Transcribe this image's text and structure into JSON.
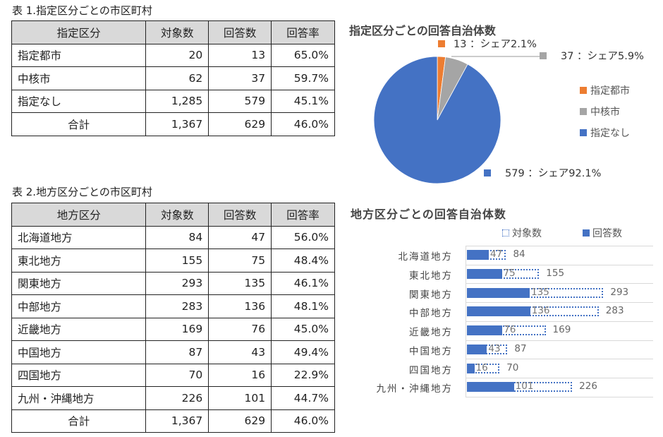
{
  "table1": {
    "caption": "表 1.指定区分ごとの市区町村",
    "headers": [
      "指定区分",
      "対象数",
      "回答数",
      "回答率"
    ],
    "rows": [
      {
        "label": "指定都市",
        "target": "20",
        "responses": "13",
        "rate": "65.0%"
      },
      {
        "label": "中核市",
        "target": "62",
        "responses": "37",
        "rate": "59.7%"
      },
      {
        "label": "指定なし",
        "target": "1,285",
        "responses": "579",
        "rate": "45.1%"
      }
    ],
    "total": {
      "label": "合計",
      "target": "1,367",
      "responses": "629",
      "rate": "46.0%"
    }
  },
  "table2": {
    "caption": "表 2.地方区分ごとの市区町村",
    "headers": [
      "地方区分",
      "対象数",
      "回答数",
      "回答率"
    ],
    "rows": [
      {
        "label": "北海道地方",
        "target": "84",
        "responses": "47",
        "rate": "56.0%"
      },
      {
        "label": "東北地方",
        "target": "155",
        "responses": "75",
        "rate": "48.4%"
      },
      {
        "label": "関東地方",
        "target": "293",
        "responses": "135",
        "rate": "46.1%"
      },
      {
        "label": "中部地方",
        "target": "283",
        "responses": "136",
        "rate": "48.1%"
      },
      {
        "label": "近畿地方",
        "target": "169",
        "responses": "76",
        "rate": "45.0%"
      },
      {
        "label": "中国地方",
        "target": "87",
        "responses": "43",
        "rate": "49.4%"
      },
      {
        "label": "四国地方",
        "target": "70",
        "responses": "16",
        "rate": "22.9%"
      },
      {
        "label": "九州・沖縄地方",
        "target": "226",
        "responses": "101",
        "rate": "44.7%"
      }
    ],
    "total": {
      "label": "合計",
      "target": "1,367",
      "responses": "629",
      "rate": "46.0%"
    }
  },
  "colors": {
    "orange": "#ed7d31",
    "gray": "#a5a5a5",
    "blue": "#4472c4",
    "header_bg": "#d9d9d9"
  },
  "chart_data": [
    {
      "type": "pie",
      "title": "指定区分ごとの回答自治体数",
      "categories": [
        "指定都市",
        "中核市",
        "指定なし"
      ],
      "values": [
        13,
        37,
        579
      ],
      "shares": [
        "2.1%",
        "5.9%",
        "92.1%"
      ],
      "data_labels": [
        "13 ：シェア2.1%",
        "37 ：シェア5.9%",
        "579 ：シェア92.1%"
      ],
      "colors": [
        "#ed7d31",
        "#a5a5a5",
        "#4472c4"
      ],
      "legend": [
        "指定都市",
        "中核市",
        "指定なし"
      ],
      "legend_position": "right"
    },
    {
      "type": "bar",
      "orientation": "horizontal",
      "title": "地方区分ごとの回答自治体数",
      "categories": [
        "北海道地方",
        "東北地方",
        "関東地方",
        "中部地方",
        "近畿地方",
        "中国地方",
        "四国地方",
        "九州・沖縄地方"
      ],
      "series": [
        {
          "name": "対象数",
          "values": [
            84,
            155,
            293,
            283,
            169,
            87,
            70,
            226
          ],
          "style": "dotted-outline"
        },
        {
          "name": "回答数",
          "values": [
            47,
            75,
            135,
            136,
            76,
            43,
            16,
            101
          ],
          "style": "solid"
        }
      ],
      "legend": [
        "対象数",
        "回答数"
      ],
      "legend_position": "top",
      "grid": true,
      "xlim": [
        0,
        400
      ]
    }
  ]
}
